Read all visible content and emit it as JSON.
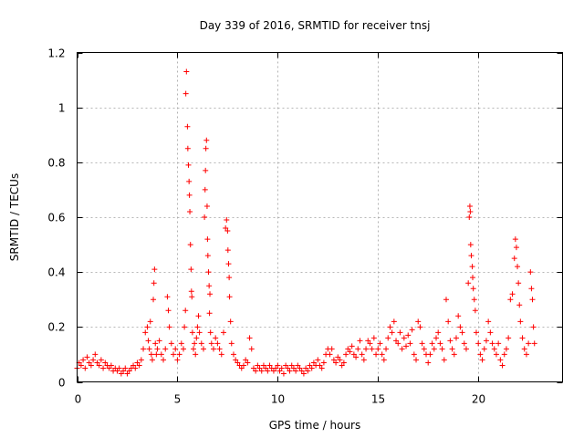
{
  "chart_data": {
    "type": "scatter",
    "title": "Day 339 of 2016, SRMTID for receiver tnsj",
    "xlabel": "GPS time / hours",
    "ylabel": "SRMTID / TECUs",
    "xlim": [
      0,
      24.2
    ],
    "ylim": [
      0,
      1.2
    ],
    "xticks": [
      0,
      5,
      10,
      15,
      20
    ],
    "xtick_labels": [
      "0",
      "5",
      "10",
      "15",
      "20"
    ],
    "yticks": [
      0,
      0.2,
      0.4,
      0.6,
      0.8,
      1.0,
      1.2
    ],
    "ytick_labels": [
      "0",
      "0.2",
      "0.4",
      "0.6",
      "0.8",
      "1",
      "1.2"
    ],
    "grid": true,
    "marker": "+",
    "series": [
      {
        "name": "SRMTID",
        "color": "#ff0000",
        "points": [
          [
            0.0,
            0.05
          ],
          [
            0.1,
            0.07
          ],
          [
            0.2,
            0.06
          ],
          [
            0.3,
            0.08
          ],
          [
            0.4,
            0.05
          ],
          [
            0.5,
            0.09
          ],
          [
            0.6,
            0.07
          ],
          [
            0.7,
            0.06
          ],
          [
            0.8,
            0.08
          ],
          [
            0.9,
            0.1
          ],
          [
            1.0,
            0.07
          ],
          [
            1.1,
            0.06
          ],
          [
            1.2,
            0.08
          ],
          [
            1.3,
            0.05
          ],
          [
            1.4,
            0.07
          ],
          [
            1.5,
            0.06
          ],
          [
            1.6,
            0.05
          ],
          [
            1.7,
            0.06
          ],
          [
            1.8,
            0.04
          ],
          [
            1.9,
            0.05
          ],
          [
            2.0,
            0.04
          ],
          [
            2.1,
            0.05
          ],
          [
            2.2,
            0.03
          ],
          [
            2.3,
            0.04
          ],
          [
            2.4,
            0.05
          ],
          [
            2.5,
            0.03
          ],
          [
            2.6,
            0.04
          ],
          [
            2.7,
            0.05
          ],
          [
            2.8,
            0.06
          ],
          [
            2.9,
            0.05
          ],
          [
            3.0,
            0.07
          ],
          [
            3.1,
            0.06
          ],
          [
            3.2,
            0.08
          ],
          [
            3.3,
            0.12
          ],
          [
            3.4,
            0.18
          ],
          [
            3.5,
            0.2
          ],
          [
            3.55,
            0.15
          ],
          [
            3.6,
            0.12
          ],
          [
            3.65,
            0.22
          ],
          [
            3.7,
            0.1
          ],
          [
            3.75,
            0.08
          ],
          [
            3.8,
            0.3
          ],
          [
            3.83,
            0.36
          ],
          [
            3.86,
            0.41
          ],
          [
            3.9,
            0.14
          ],
          [
            3.95,
            0.1
          ],
          [
            4.0,
            0.12
          ],
          [
            4.1,
            0.15
          ],
          [
            4.2,
            0.1
          ],
          [
            4.3,
            0.08
          ],
          [
            4.4,
            0.12
          ],
          [
            4.5,
            0.31
          ],
          [
            4.55,
            0.26
          ],
          [
            4.6,
            0.2
          ],
          [
            4.7,
            0.14
          ],
          [
            4.8,
            0.1
          ],
          [
            4.9,
            0.12
          ],
          [
            5.0,
            0.08
          ],
          [
            5.1,
            0.1
          ],
          [
            5.2,
            0.14
          ],
          [
            5.3,
            0.12
          ],
          [
            5.35,
            0.2
          ],
          [
            5.4,
            0.26
          ],
          [
            5.42,
            1.05
          ],
          [
            5.45,
            1.13
          ],
          [
            5.5,
            0.93
          ],
          [
            5.52,
            0.85
          ],
          [
            5.55,
            0.79
          ],
          [
            5.58,
            0.73
          ],
          [
            5.6,
            0.68
          ],
          [
            5.62,
            0.62
          ],
          [
            5.65,
            0.5
          ],
          [
            5.68,
            0.41
          ],
          [
            5.7,
            0.33
          ],
          [
            5.72,
            0.31
          ],
          [
            5.75,
            0.18
          ],
          [
            5.8,
            0.12
          ],
          [
            5.85,
            0.14
          ],
          [
            5.9,
            0.1
          ],
          [
            5.95,
            0.16
          ],
          [
            6.0,
            0.2
          ],
          [
            6.05,
            0.24
          ],
          [
            6.1,
            0.18
          ],
          [
            6.2,
            0.14
          ],
          [
            6.3,
            0.12
          ],
          [
            6.35,
            0.6
          ],
          [
            6.38,
            0.7
          ],
          [
            6.4,
            0.77
          ],
          [
            6.42,
            0.85
          ],
          [
            6.45,
            0.88
          ],
          [
            6.48,
            0.64
          ],
          [
            6.5,
            0.52
          ],
          [
            6.52,
            0.46
          ],
          [
            6.55,
            0.4
          ],
          [
            6.58,
            0.35
          ],
          [
            6.6,
            0.25
          ],
          [
            6.62,
            0.32
          ],
          [
            6.65,
            0.18
          ],
          [
            6.7,
            0.14
          ],
          [
            6.8,
            0.12
          ],
          [
            6.9,
            0.16
          ],
          [
            7.0,
            0.14
          ],
          [
            7.1,
            0.12
          ],
          [
            7.2,
            0.1
          ],
          [
            7.3,
            0.18
          ],
          [
            7.4,
            0.56
          ],
          [
            7.45,
            0.59
          ],
          [
            7.5,
            0.55
          ],
          [
            7.52,
            0.48
          ],
          [
            7.55,
            0.43
          ],
          [
            7.58,
            0.38
          ],
          [
            7.6,
            0.31
          ],
          [
            7.65,
            0.22
          ],
          [
            7.7,
            0.14
          ],
          [
            7.8,
            0.1
          ],
          [
            7.9,
            0.08
          ],
          [
            8.0,
            0.07
          ],
          [
            8.1,
            0.06
          ],
          [
            8.2,
            0.05
          ],
          [
            8.3,
            0.06
          ],
          [
            8.4,
            0.08
          ],
          [
            8.5,
            0.07
          ],
          [
            8.6,
            0.16
          ],
          [
            8.7,
            0.12
          ],
          [
            8.8,
            0.05
          ],
          [
            8.9,
            0.04
          ],
          [
            9.0,
            0.06
          ],
          [
            9.1,
            0.05
          ],
          [
            9.2,
            0.04
          ],
          [
            9.3,
            0.06
          ],
          [
            9.4,
            0.05
          ],
          [
            9.5,
            0.04
          ],
          [
            9.6,
            0.06
          ],
          [
            9.7,
            0.05
          ],
          [
            9.8,
            0.04
          ],
          [
            9.9,
            0.05
          ],
          [
            10.0,
            0.06
          ],
          [
            10.1,
            0.04
          ],
          [
            10.2,
            0.05
          ],
          [
            10.3,
            0.03
          ],
          [
            10.4,
            0.06
          ],
          [
            10.5,
            0.05
          ],
          [
            10.6,
            0.04
          ],
          [
            10.7,
            0.06
          ],
          [
            10.8,
            0.05
          ],
          [
            10.9,
            0.04
          ],
          [
            11.0,
            0.06
          ],
          [
            11.1,
            0.05
          ],
          [
            11.2,
            0.04
          ],
          [
            11.3,
            0.03
          ],
          [
            11.4,
            0.05
          ],
          [
            11.5,
            0.04
          ],
          [
            11.6,
            0.06
          ],
          [
            11.7,
            0.05
          ],
          [
            11.8,
            0.07
          ],
          [
            11.9,
            0.06
          ],
          [
            12.0,
            0.08
          ],
          [
            12.1,
            0.06
          ],
          [
            12.2,
            0.05
          ],
          [
            12.3,
            0.07
          ],
          [
            12.4,
            0.1
          ],
          [
            12.5,
            0.12
          ],
          [
            12.6,
            0.1
          ],
          [
            12.7,
            0.12
          ],
          [
            12.8,
            0.08
          ],
          [
            12.9,
            0.07
          ],
          [
            13.0,
            0.09
          ],
          [
            13.1,
            0.08
          ],
          [
            13.2,
            0.06
          ],
          [
            13.3,
            0.07
          ],
          [
            13.4,
            0.1
          ],
          [
            13.5,
            0.12
          ],
          [
            13.6,
            0.11
          ],
          [
            13.7,
            0.13
          ],
          [
            13.8,
            0.1
          ],
          [
            13.9,
            0.09
          ],
          [
            14.0,
            0.12
          ],
          [
            14.1,
            0.15
          ],
          [
            14.2,
            0.1
          ],
          [
            14.3,
            0.08
          ],
          [
            14.4,
            0.12
          ],
          [
            14.5,
            0.15
          ],
          [
            14.6,
            0.14
          ],
          [
            14.7,
            0.12
          ],
          [
            14.8,
            0.16
          ],
          [
            14.9,
            0.1
          ],
          [
            15.0,
            0.12
          ],
          [
            15.1,
            0.14
          ],
          [
            15.2,
            0.1
          ],
          [
            15.3,
            0.08
          ],
          [
            15.4,
            0.12
          ],
          [
            15.5,
            0.16
          ],
          [
            15.6,
            0.2
          ],
          [
            15.7,
            0.18
          ],
          [
            15.8,
            0.22
          ],
          [
            15.9,
            0.15
          ],
          [
            16.0,
            0.14
          ],
          [
            16.1,
            0.18
          ],
          [
            16.2,
            0.12
          ],
          [
            16.3,
            0.16
          ],
          [
            16.4,
            0.13
          ],
          [
            16.5,
            0.17
          ],
          [
            16.6,
            0.14
          ],
          [
            16.7,
            0.19
          ],
          [
            16.8,
            0.1
          ],
          [
            16.9,
            0.08
          ],
          [
            17.0,
            0.22
          ],
          [
            17.1,
            0.2
          ],
          [
            17.2,
            0.14
          ],
          [
            17.3,
            0.12
          ],
          [
            17.4,
            0.1
          ],
          [
            17.5,
            0.07
          ],
          [
            17.6,
            0.1
          ],
          [
            17.7,
            0.14
          ],
          [
            17.8,
            0.12
          ],
          [
            17.9,
            0.16
          ],
          [
            18.0,
            0.18
          ],
          [
            18.1,
            0.14
          ],
          [
            18.2,
            0.12
          ],
          [
            18.3,
            0.08
          ],
          [
            18.4,
            0.3
          ],
          [
            18.5,
            0.22
          ],
          [
            18.6,
            0.15
          ],
          [
            18.7,
            0.12
          ],
          [
            18.8,
            0.1
          ],
          [
            18.9,
            0.16
          ],
          [
            19.0,
            0.24
          ],
          [
            19.1,
            0.2
          ],
          [
            19.2,
            0.18
          ],
          [
            19.3,
            0.14
          ],
          [
            19.4,
            0.12
          ],
          [
            19.5,
            0.36
          ],
          [
            19.55,
            0.6
          ],
          [
            19.58,
            0.64
          ],
          [
            19.6,
            0.62
          ],
          [
            19.62,
            0.5
          ],
          [
            19.65,
            0.46
          ],
          [
            19.7,
            0.42
          ],
          [
            19.72,
            0.38
          ],
          [
            19.75,
            0.34
          ],
          [
            19.8,
            0.3
          ],
          [
            19.85,
            0.26
          ],
          [
            19.9,
            0.18
          ],
          [
            20.0,
            0.14
          ],
          [
            20.1,
            0.1
          ],
          [
            20.2,
            0.08
          ],
          [
            20.3,
            0.12
          ],
          [
            20.4,
            0.15
          ],
          [
            20.5,
            0.22
          ],
          [
            20.6,
            0.18
          ],
          [
            20.7,
            0.14
          ],
          [
            20.8,
            0.12
          ],
          [
            20.9,
            0.1
          ],
          [
            21.0,
            0.14
          ],
          [
            21.1,
            0.08
          ],
          [
            21.2,
            0.06
          ],
          [
            21.3,
            0.1
          ],
          [
            21.4,
            0.12
          ],
          [
            21.5,
            0.16
          ],
          [
            21.6,
            0.3
          ],
          [
            21.7,
            0.32
          ],
          [
            21.8,
            0.45
          ],
          [
            21.85,
            0.52
          ],
          [
            21.9,
            0.49
          ],
          [
            21.95,
            0.42
          ],
          [
            22.0,
            0.36
          ],
          [
            22.05,
            0.28
          ],
          [
            22.1,
            0.22
          ],
          [
            22.2,
            0.16
          ],
          [
            22.3,
            0.12
          ],
          [
            22.4,
            0.1
          ],
          [
            22.5,
            0.14
          ],
          [
            22.6,
            0.4
          ],
          [
            22.65,
            0.34
          ],
          [
            22.7,
            0.3
          ],
          [
            22.75,
            0.2
          ],
          [
            22.8,
            0.14
          ]
        ]
      }
    ]
  }
}
